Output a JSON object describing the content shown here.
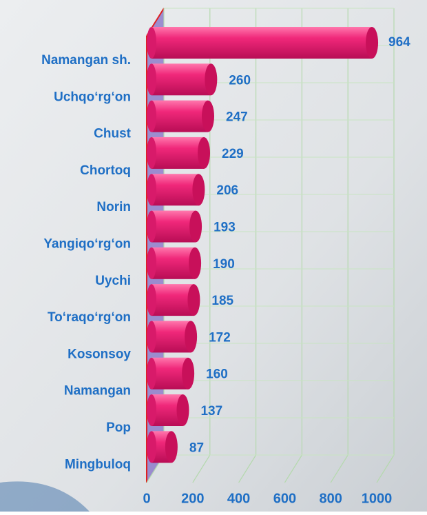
{
  "chart_data": {
    "type": "bar",
    "orientation": "horizontal",
    "categories": [
      "Namangan sh.",
      "Uchqo‘rg‘on",
      "Chust",
      "Chortoq",
      "Norin",
      "Yangiqo‘rg‘on",
      "Uychi",
      "To‘raqo‘rg‘on",
      "Kosonsoy",
      "Namangan",
      "Pop",
      "Mingbuloq"
    ],
    "values": [
      964,
      260,
      247,
      229,
      206,
      193,
      190,
      185,
      172,
      160,
      137,
      87
    ],
    "color": "#f0287a",
    "xlim": [
      0,
      1000
    ],
    "xticks": [
      0,
      200,
      400,
      600,
      800,
      1000
    ],
    "grid": true
  }
}
